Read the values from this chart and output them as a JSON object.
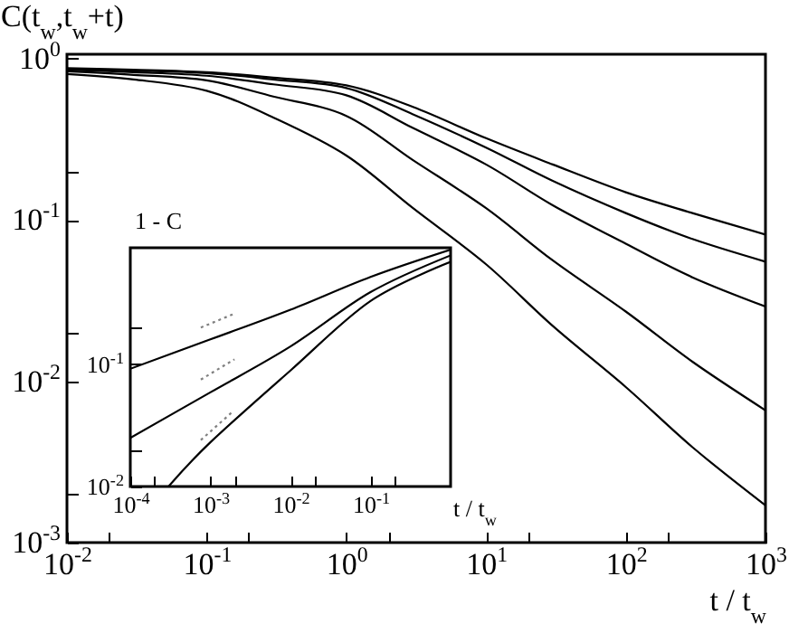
{
  "chart_data": [
    {
      "type": "line",
      "xlabel": "t / t$_{w}$",
      "ylabel": "C(t$_{w}$,t$_{w}$+t)",
      "log": "xy",
      "grid": false,
      "legend": false,
      "xlim": [
        0.01,
        1000
      ],
      "ylim": [
        0.001,
        1.06
      ],
      "xticks": [
        {
          "value": 0.01,
          "label": "10$^{-2}$"
        },
        {
          "value": 0.02,
          "label": null
        },
        {
          "value": 0.1,
          "label": "10$^{-1}$"
        },
        {
          "value": 0.2,
          "label": null
        },
        {
          "value": 1,
          "label": "10$^{0}$"
        },
        {
          "value": 2,
          "label": null
        },
        {
          "value": 10,
          "label": "10$^{1}$"
        },
        {
          "value": 20,
          "label": null
        },
        {
          "value": 100,
          "label": "10$^{2}$"
        },
        {
          "value": 200,
          "label": null
        },
        {
          "value": 1000,
          "label": "10$^{3}$"
        }
      ],
      "yticks": [
        {
          "value": 0.001,
          "label": "10$^{-3}$"
        },
        {
          "value": 0.002,
          "label": null
        },
        {
          "value": 0.01,
          "label": "10$^{-2}$"
        },
        {
          "value": 0.02,
          "label": null
        },
        {
          "value": 0.1,
          "label": "10$^{-1}$"
        },
        {
          "value": 0.2,
          "label": null
        },
        {
          "value": 1,
          "label": "10$^{0}$"
        }
      ],
      "x": [
        0.01,
        0.03,
        0.1,
        0.3,
        1,
        3,
        10,
        30,
        100,
        300,
        1000
      ],
      "series": [
        {
          "color": "#000000",
          "values": [
            0.87,
            0.85,
            0.82,
            0.76,
            0.68,
            0.5,
            0.32,
            0.22,
            0.148,
            0.11,
            0.081
          ]
        },
        {
          "color": "#000000",
          "values": [
            0.86,
            0.84,
            0.81,
            0.74,
            0.655,
            0.45,
            0.28,
            0.174,
            0.11,
            0.076,
            0.055
          ]
        },
        {
          "color": "#000000",
          "values": [
            0.85,
            0.82,
            0.78,
            0.69,
            0.59,
            0.37,
            0.22,
            0.123,
            0.071,
            0.044,
            0.029
          ]
        },
        {
          "color": "#000000",
          "values": [
            0.83,
            0.79,
            0.73,
            0.58,
            0.44,
            0.234,
            0.118,
            0.056,
            0.027,
            0.0132,
            0.0066
          ]
        },
        {
          "color": "#000000",
          "values": [
            0.8,
            0.74,
            0.63,
            0.43,
            0.25,
            0.118,
            0.053,
            0.022,
            0.0092,
            0.0039,
            0.0017
          ]
        }
      ]
    },
    {
      "type": "line",
      "xlabel": "t / t$_{w}$",
      "ylabel": "1 - C",
      "log": "xy",
      "grid": false,
      "legend": false,
      "xlim": [
        0.0001,
        1
      ],
      "ylim": [
        0.01,
        0.9
      ],
      "xticks": [
        {
          "value": 0.0001,
          "label": "10$^{-4}$"
        },
        {
          "value": 0.0002,
          "label": null
        },
        {
          "value": 0.001,
          "label": "10$^{-3}$"
        },
        {
          "value": 0.002,
          "label": null
        },
        {
          "value": 0.01,
          "label": "10$^{-2}$"
        },
        {
          "value": 0.02,
          "label": null
        },
        {
          "value": 0.1,
          "label": "10$^{-1}$"
        },
        {
          "value": 0.2,
          "label": null
        }
      ],
      "yticks": [
        {
          "value": 0.01,
          "label": "10$^{-2}$"
        },
        {
          "value": 0.02,
          "label": null
        },
        {
          "value": 0.1,
          "label": "10$^{-1}$"
        },
        {
          "value": 0.2,
          "label": null
        }
      ],
      "series": [
        {
          "color": "#000000",
          "x": [
            0.0001,
            0.001,
            0.01,
            0.1,
            1
          ],
          "values": [
            0.092,
            0.16,
            0.28,
            0.52,
            0.87
          ]
        },
        {
          "color": "#000000",
          "x": [
            0.0001,
            0.001,
            0.01,
            0.1,
            1
          ],
          "values": [
            0.025,
            0.059,
            0.14,
            0.39,
            0.78
          ]
        },
        {
          "color": "#000000",
          "x": [
            0.0003,
            0.001,
            0.01,
            0.1,
            1
          ],
          "values": [
            0.01,
            0.023,
            0.089,
            0.33,
            0.69
          ]
        },
        {
          "color": "#808080",
          "line_style": "dotted",
          "x": [
            0.00076,
            0.002
          ],
          "values": [
            0.2,
            0.26
          ]
        },
        {
          "color": "#808080",
          "line_style": "dotted",
          "x": [
            0.00076,
            0.002
          ],
          "values": [
            0.075,
            0.11
          ]
        },
        {
          "color": "#808080",
          "line_style": "dotted",
          "x": [
            0.00076,
            0.0019
          ],
          "values": [
            0.024,
            0.041
          ]
        }
      ]
    }
  ]
}
